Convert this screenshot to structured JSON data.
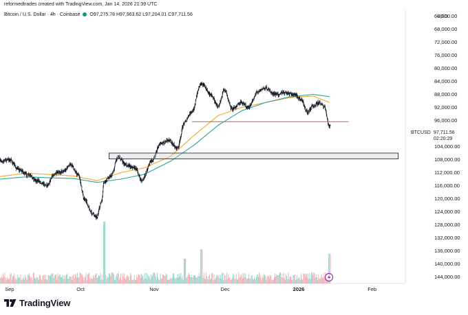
{
  "header": {
    "author_line": "reformedtrades created with TradingView.com, Jan 14, 2026 21:39 UTC"
  },
  "symbol": {
    "name": "Bitcoin / U.S. Dollar · 4h · Coinbase",
    "o_label": "O",
    "o_value": "97,275.78",
    "h_label": "H",
    "h_value": "97,963.62",
    "l_label": "L",
    "l_value": "97,204.01",
    "c_label": "C",
    "c_value": "97,711.56"
  },
  "price_tag": {
    "symbol": "BTCUSD",
    "price": "97,711.56",
    "countdown": "02:20:29"
  },
  "branding": {
    "logo_text": "TradingView"
  },
  "colors": {
    "up": "#089981",
    "down": "#f23645",
    "candle": "#131722",
    "ma_fast": "#f5a623",
    "ma_slow": "#26a69a",
    "resistance": "#e57373",
    "volume_up": "#8fd3c7",
    "volume_down": "#f6a6ad"
  },
  "chart_data": {
    "type": "candlestick",
    "currency_label": "USD",
    "y_axis_inverted": true,
    "y_ticks": [
      "64,000.00",
      "68,000.00",
      "72,000.00",
      "76,000.00",
      "80,000.00",
      "84,000.00",
      "88,000.00",
      "92,000.00",
      "96,000.00",
      "104,000.00",
      "108,000.00",
      "112,000.00",
      "116,000.00",
      "120,000.00",
      "124,000.00",
      "128,000.00",
      "132,000.00",
      "136,000.00",
      "140,000.00",
      "144,000.00"
    ],
    "ylim": [
      62000,
      146000
    ],
    "x_labels": [
      {
        "label": "Sep",
        "date": "2025-09-01"
      },
      {
        "label": "Oct",
        "date": "2025-10-01"
      },
      {
        "label": "Nov",
        "date": "2025-11-01"
      },
      {
        "label": "Dec",
        "date": "2025-12-01"
      },
      {
        "label": "2026",
        "date": "2026-01-01"
      },
      {
        "label": "Feb",
        "date": "2026-02-01"
      }
    ],
    "date_range": [
      "2025-08-28",
      "2026-02-15"
    ],
    "last_bar_date": "2026-01-14",
    "price_path": [
      {
        "date": "2025-08-28",
        "price": 108500
      },
      {
        "date": "2025-09-01",
        "price": 108000
      },
      {
        "date": "2025-09-05",
        "price": 111000
      },
      {
        "date": "2025-09-09",
        "price": 112800
      },
      {
        "date": "2025-09-13",
        "price": 114500
      },
      {
        "date": "2025-09-17",
        "price": 115800
      },
      {
        "date": "2025-09-20",
        "price": 112500
      },
      {
        "date": "2025-09-24",
        "price": 111500
      },
      {
        "date": "2025-09-27",
        "price": 109500
      },
      {
        "date": "2025-09-30",
        "price": 112500
      },
      {
        "date": "2025-10-03",
        "price": 120500
      },
      {
        "date": "2025-10-06",
        "price": 124500
      },
      {
        "date": "2025-10-08",
        "price": 125500
      },
      {
        "date": "2025-10-10",
        "price": 121000
      },
      {
        "date": "2025-10-11",
        "price": 115000
      },
      {
        "date": "2025-10-14",
        "price": 113000
      },
      {
        "date": "2025-10-17",
        "price": 107000
      },
      {
        "date": "2025-10-20",
        "price": 109500
      },
      {
        "date": "2025-10-24",
        "price": 110500
      },
      {
        "date": "2025-10-27",
        "price": 114500
      },
      {
        "date": "2025-10-31",
        "price": 108500
      },
      {
        "date": "2025-11-04",
        "price": 103000
      },
      {
        "date": "2025-11-07",
        "price": 102000
      },
      {
        "date": "2025-11-11",
        "price": 104500
      },
      {
        "date": "2025-11-14",
        "price": 96500
      },
      {
        "date": "2025-11-17",
        "price": 93500
      },
      {
        "date": "2025-11-21",
        "price": 84500
      },
      {
        "date": "2025-11-25",
        "price": 88000
      },
      {
        "date": "2025-11-28",
        "price": 91500
      },
      {
        "date": "2025-12-01",
        "price": 86500
      },
      {
        "date": "2025-12-04",
        "price": 92500
      },
      {
        "date": "2025-12-08",
        "price": 90500
      },
      {
        "date": "2025-12-11",
        "price": 92000
      },
      {
        "date": "2025-12-15",
        "price": 87000
      },
      {
        "date": "2025-12-18",
        "price": 86000
      },
      {
        "date": "2025-12-22",
        "price": 88000
      },
      {
        "date": "2025-12-26",
        "price": 87500
      },
      {
        "date": "2025-12-30",
        "price": 88000
      },
      {
        "date": "2026-01-02",
        "price": 89500
      },
      {
        "date": "2026-01-05",
        "price": 93500
      },
      {
        "date": "2026-01-07",
        "price": 91500
      },
      {
        "date": "2026-01-10",
        "price": 90500
      },
      {
        "date": "2026-01-12",
        "price": 92000
      },
      {
        "date": "2026-01-14",
        "price": 97711.56
      }
    ],
    "moving_averages": [
      {
        "color": "#f5a623",
        "points": [
          {
            "date": "2025-08-28",
            "price": 113200
          },
          {
            "date": "2025-09-08",
            "price": 112200
          },
          {
            "date": "2025-09-18",
            "price": 112600
          },
          {
            "date": "2025-09-28",
            "price": 113000
          },
          {
            "date": "2025-10-08",
            "price": 114500
          },
          {
            "date": "2025-10-18",
            "price": 112000
          },
          {
            "date": "2025-10-28",
            "price": 110500
          },
          {
            "date": "2025-11-08",
            "price": 107000
          },
          {
            "date": "2025-11-18",
            "price": 100500
          },
          {
            "date": "2025-11-28",
            "price": 94500
          },
          {
            "date": "2025-12-08",
            "price": 92000
          },
          {
            "date": "2025-12-18",
            "price": 90500
          },
          {
            "date": "2025-12-28",
            "price": 89000
          },
          {
            "date": "2026-01-07",
            "price": 88500
          },
          {
            "date": "2026-01-14",
            "price": 90500
          }
        ]
      },
      {
        "color": "#26a69a",
        "points": [
          {
            "date": "2025-08-28",
            "price": 114000
          },
          {
            "date": "2025-09-08",
            "price": 113300
          },
          {
            "date": "2025-09-18",
            "price": 113600
          },
          {
            "date": "2025-09-28",
            "price": 113800
          },
          {
            "date": "2025-10-08",
            "price": 115000
          },
          {
            "date": "2025-10-18",
            "price": 114000
          },
          {
            "date": "2025-10-28",
            "price": 112500
          },
          {
            "date": "2025-11-08",
            "price": 108500
          },
          {
            "date": "2025-11-18",
            "price": 103500
          },
          {
            "date": "2025-11-28",
            "price": 97500
          },
          {
            "date": "2025-12-08",
            "price": 93000
          },
          {
            "date": "2025-12-18",
            "price": 90500
          },
          {
            "date": "2025-12-28",
            "price": 88800
          },
          {
            "date": "2026-01-07",
            "price": 88000
          },
          {
            "date": "2026-01-14",
            "price": 88700
          }
        ]
      }
    ],
    "annotations": [
      {
        "type": "horizontal_line",
        "price": 96400,
        "from": "2025-11-17",
        "to": "2026-01-22",
        "color": "#e57373"
      },
      {
        "type": "rectangle",
        "price_top": 106000,
        "price_bottom": 107800,
        "from": "2025-10-13",
        "to": "2026-02-12"
      }
    ],
    "volume_spikes": [
      {
        "date": "2025-10-11",
        "relative": 1.0
      },
      {
        "date": "2025-11-21",
        "relative": 0.55
      },
      {
        "date": "2025-11-14",
        "relative": 0.4
      },
      {
        "date": "2026-01-14",
        "relative": 0.48
      }
    ]
  }
}
